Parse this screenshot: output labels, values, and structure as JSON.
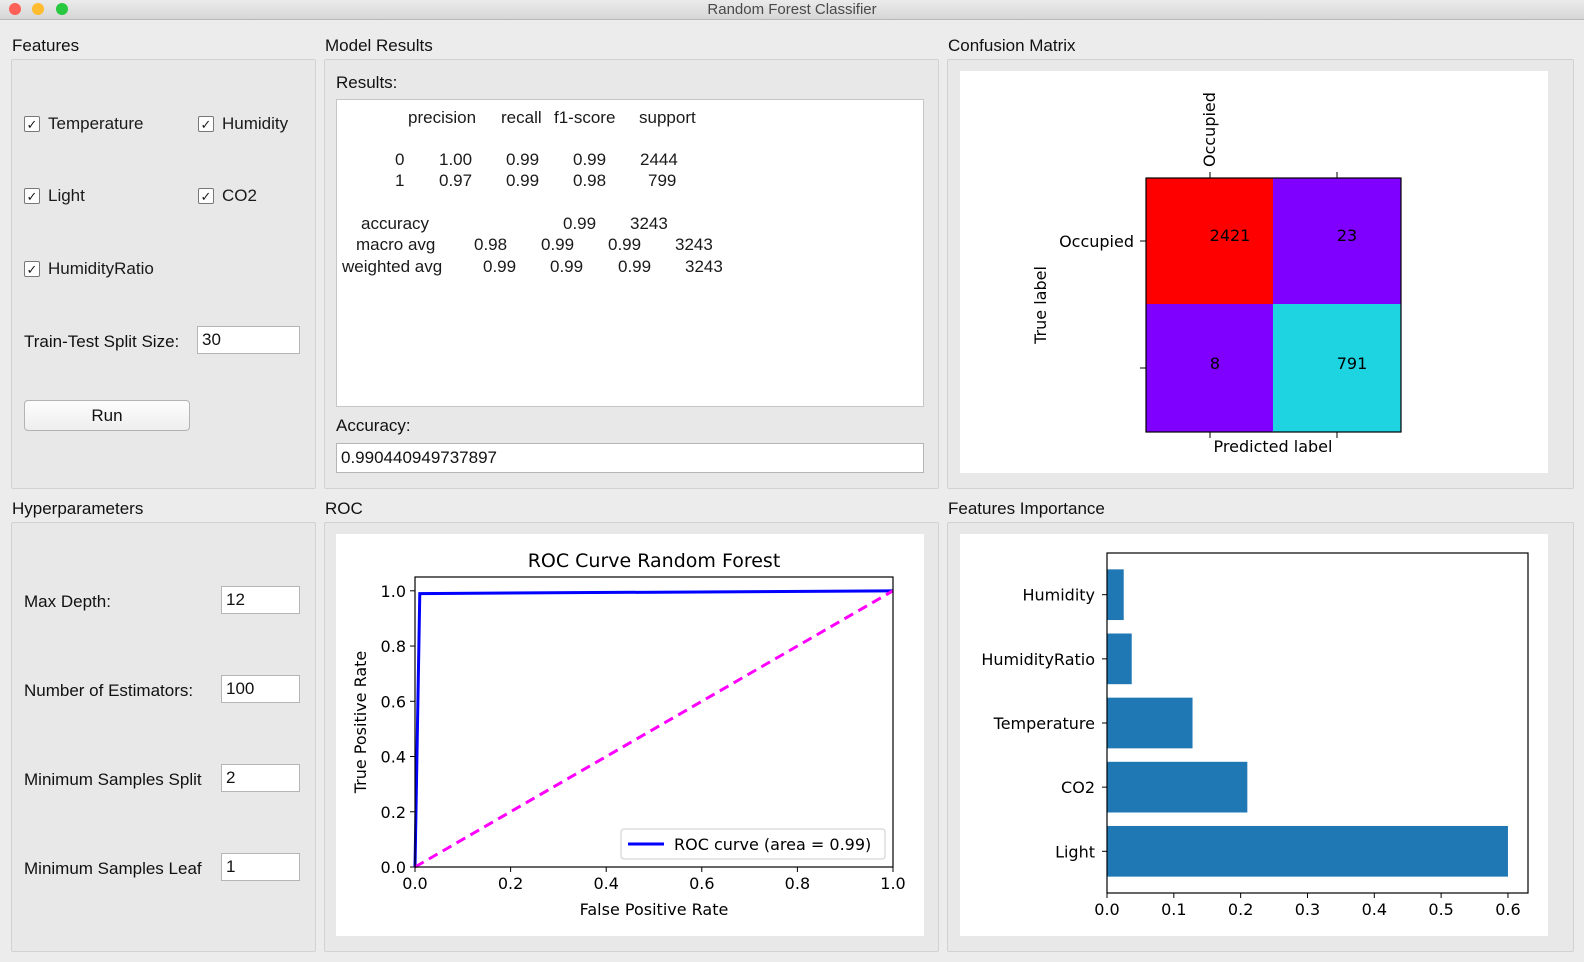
{
  "window": {
    "title": "Random Forest Classifier"
  },
  "features": {
    "title": "Features",
    "checkboxes": [
      {
        "label": "Temperature",
        "checked": true
      },
      {
        "label": "Humidity",
        "checked": true
      },
      {
        "label": "Light",
        "checked": true
      },
      {
        "label": "CO2",
        "checked": true
      },
      {
        "label": "HumidityRatio",
        "checked": true
      }
    ],
    "check_glyph": "✓",
    "split_label": "Train-Test Split Size:",
    "split_value": "30",
    "run_label": "Run"
  },
  "hyper": {
    "title": "Hyperparameters",
    "fields": [
      {
        "label": "Max Depth:",
        "value": "12"
      },
      {
        "label": "Number of Estimators:",
        "value": "100"
      },
      {
        "label": "Minimum Samples Split",
        "value": "2"
      },
      {
        "label": "Minimum Samples Leaf",
        "value": "1"
      }
    ]
  },
  "model": {
    "title": "Model Results",
    "results_label": "Results:",
    "report": {
      "headers": [
        "precision",
        "recall",
        "f1-score",
        "support"
      ],
      "rows": [
        [
          "0",
          "1.00",
          "0.99",
          "0.99",
          "2444"
        ],
        [
          "1",
          "0.97",
          "0.99",
          "0.98",
          "799"
        ]
      ],
      "accuracy": [
        "accuracy",
        "0.99",
        "3243"
      ],
      "macro": [
        "macro avg",
        "0.98",
        "0.99",
        "0.99",
        "3243"
      ],
      "weighted": [
        "weighted avg",
        "0.99",
        "0.99",
        "0.99",
        "3243"
      ]
    },
    "accuracy_label": "Accuracy:",
    "accuracy_value": "0.990440949737897"
  },
  "confusion": {
    "title": "Confusion Matrix",
    "col_label": "Occupied",
    "row_label": "Occupied",
    "ylabel": "True label",
    "xlabel": "Predicted label",
    "cells": [
      {
        "value": "2421",
        "color": "#ff0000"
      },
      {
        "value": "23",
        "color": "#8000ff"
      },
      {
        "value": "8",
        "color": "#8000ff"
      },
      {
        "value": "791",
        "color": "#1ed4e0"
      }
    ]
  },
  "roc_panel": {
    "title": "ROC"
  },
  "importance_panel": {
    "title": "Features Importance"
  },
  "chart_data": [
    {
      "type": "line",
      "title": "ROC Curve Random Forest",
      "xlabel": "False Positive Rate",
      "ylabel": "True Positive Rate",
      "xlim": [
        0,
        1
      ],
      "ylim": [
        0,
        1.05
      ],
      "xticks": [
        "0.0",
        "0.2",
        "0.4",
        "0.6",
        "0.8",
        "1.0"
      ],
      "yticks": [
        "0.0",
        "0.2",
        "0.4",
        "0.6",
        "0.8",
        "1.0"
      ],
      "series": [
        {
          "name": "ROC curve (area = 0.99)",
          "color": "#0000ff",
          "x": [
            0,
            0.01,
            1
          ],
          "y": [
            0,
            0.99,
            1
          ]
        },
        {
          "color": "#ff00ff",
          "style": "dashed",
          "x": [
            0,
            1
          ],
          "y": [
            0,
            1
          ]
        }
      ],
      "legend": "lower right",
      "grid": false
    },
    {
      "type": "bar",
      "orientation": "horizontal",
      "categories": [
        "Light",
        "CO2",
        "Temperature",
        "HumidityRatio",
        "Humidity"
      ],
      "values": [
        0.6,
        0.21,
        0.128,
        0.037,
        0.025
      ],
      "color": "#1f77b4",
      "xlim": [
        0,
        0.63
      ],
      "xticks": [
        "0.0",
        "0.1",
        "0.2",
        "0.3",
        "0.4",
        "0.5",
        "0.6"
      ],
      "grid": false
    }
  ]
}
